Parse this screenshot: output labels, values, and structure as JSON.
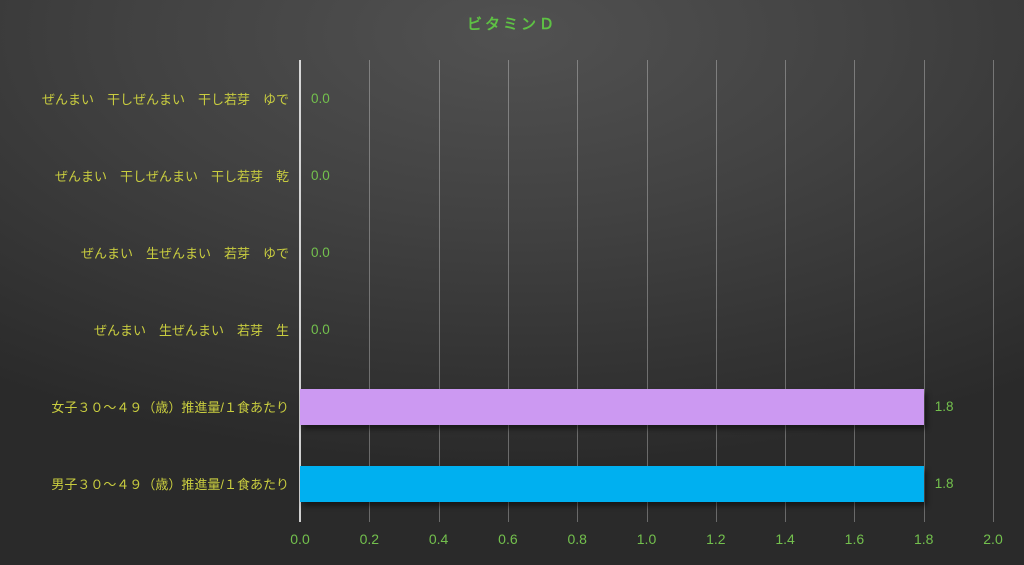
{
  "chart_data": {
    "type": "bar",
    "orientation": "horizontal",
    "title": "ビタミンＤ",
    "categories": [
      "ぜんまい　干しぜんまい　干し若芽　ゆで",
      "ぜんまい　干しぜんまい　干し若芽　乾",
      "ぜんまい　生ぜんまい　若芽　ゆで",
      "ぜんまい　生ぜんまい　若芽　生",
      "女子３０～４９（歳）推進量/１食あたり",
      "男子３０～４９（歳）推進量/１食あたり"
    ],
    "values": [
      0.0,
      0.0,
      0.0,
      0.0,
      1.8,
      1.8
    ],
    "value_labels": [
      "0.0",
      "0.0",
      "0.0",
      "0.0",
      "1.8",
      "1.8"
    ],
    "bar_colors": [
      null,
      null,
      null,
      null,
      "#cc99f2",
      "#00b0f0"
    ],
    "xlim": [
      0,
      2.0
    ],
    "xticks": [
      "0.0",
      "0.2",
      "0.4",
      "0.6",
      "0.8",
      "1.0",
      "1.2",
      "1.4",
      "1.6",
      "1.8",
      "2.0"
    ],
    "grid": true,
    "legend": "none",
    "colors": {
      "title": "#5ec144",
      "category_label": "#c9cd3f",
      "value_label": "#73c04d",
      "tick_label": "#73c04d",
      "gridline": "rgba(255,255,255,0.30)",
      "axis_line": "rgba(255,255,255,0.78)",
      "background_light": "#515151",
      "background_dark": "#2a2a2a"
    }
  }
}
